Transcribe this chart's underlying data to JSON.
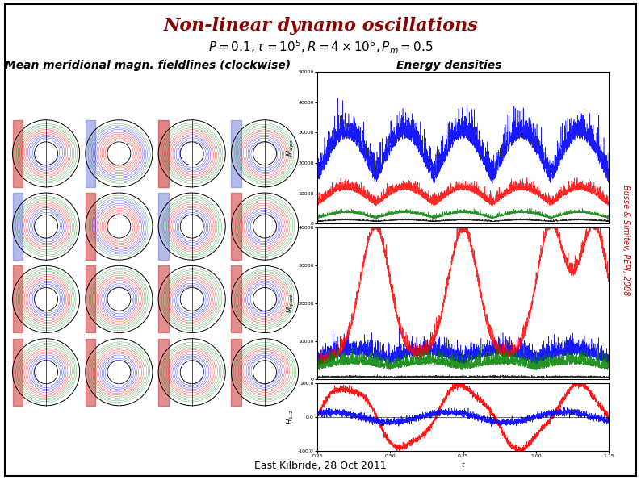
{
  "title": "Non-linear dynamo oscillations",
  "subtitle": "$P = 0.1, \\tau = 10^5, R = 4 \\times 10^6, P_m = 0.5$",
  "label_left": "Mean meridional magn. fieldlines (clockwise)",
  "label_right": "Energy densities",
  "footer": "East Kilbride, 28 Oct 2011",
  "side_text": "Busse & Simitev, PEPI, 2008",
  "title_color": "#8B0000",
  "title_fontsize": 16,
  "subtitle_fontsize": 11,
  "label_fontsize": 10,
  "footer_fontsize": 9,
  "bg_color": "#FFFFFF",
  "border_color": "#000000",
  "plot_bg": "#FFFFFF",
  "n_rows": 4,
  "n_cols": 4
}
